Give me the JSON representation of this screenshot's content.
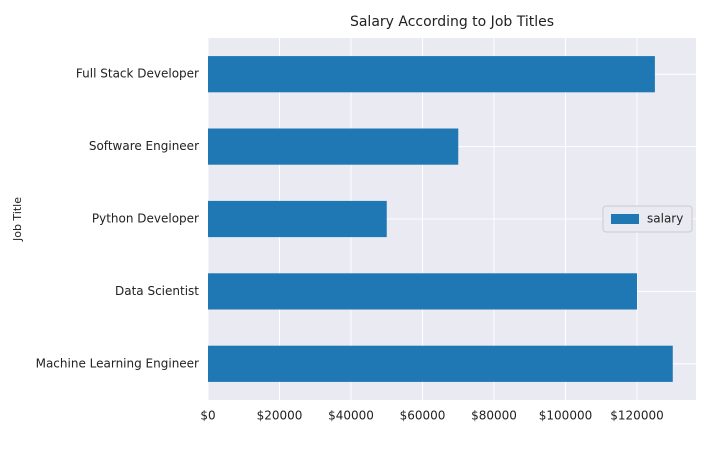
{
  "chart_data": {
    "type": "barh",
    "title": "Salary According to Job Titles",
    "ylabel": "Job Title",
    "categories": [
      "Full Stack Developer",
      "Software Engineer",
      "Python Developer",
      "Data Scientist",
      "Machine Learning Engineer"
    ],
    "series": [
      {
        "name": "salary",
        "color": "#1f77b4",
        "values": [
          125000,
          70000,
          50000,
          120000,
          130000
        ]
      }
    ],
    "xlim": [
      0,
      136500
    ],
    "xticks": [
      {
        "value": 0,
        "label": "$0"
      },
      {
        "value": 20000,
        "label": "$20000"
      },
      {
        "value": 40000,
        "label": "$40000"
      },
      {
        "value": 60000,
        "label": "$60000"
      },
      {
        "value": 80000,
        "label": "$80000"
      },
      {
        "value": 100000,
        "label": "$100000"
      },
      {
        "value": 120000,
        "label": "$120000"
      }
    ],
    "grid": true,
    "legend": "center right"
  }
}
